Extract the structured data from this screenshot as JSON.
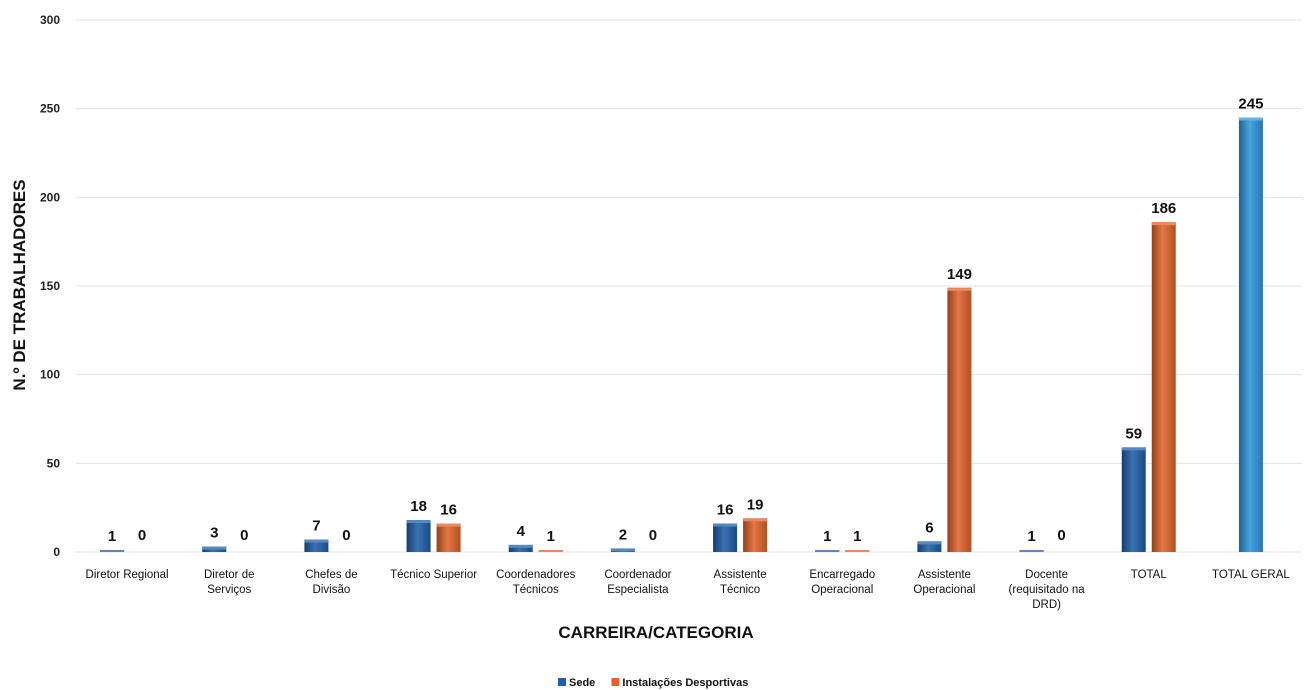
{
  "chart_data": {
    "type": "bar",
    "ylabel": "N.º DE TRABALHADORES",
    "xlabel": "CARREIRA/CATEGORIA",
    "ylim": [
      0,
      300
    ],
    "yticks": [
      "0",
      "50",
      "100",
      "150",
      "200",
      "250",
      "300"
    ],
    "grid": true,
    "legend_position": "bottom",
    "categories": [
      [
        "Diretor Regional"
      ],
      [
        "Diretor de",
        "Serviços"
      ],
      [
        "Chefes de",
        "Divisão"
      ],
      [
        "Técnico Superior"
      ],
      [
        "Coordenadores",
        "Técnicos"
      ],
      [
        "Coordenador",
        "Especialista"
      ],
      [
        "Assistente",
        "Técnico"
      ],
      [
        "Encarregado",
        "Operacional"
      ],
      [
        "Assistente",
        "Operacional"
      ],
      [
        "Docente",
        "(requisitado na",
        "DRD)"
      ],
      [
        "TOTAL"
      ],
      [
        "TOTAL GERAL"
      ]
    ],
    "series": [
      {
        "name": "Sede",
        "color": "#1f5fa8",
        "values": [
          1,
          3,
          7,
          18,
          4,
          2,
          16,
          1,
          6,
          1,
          59,
          null
        ]
      },
      {
        "name": "Instalações Desportivas",
        "color": "#e0642a",
        "values": [
          0,
          0,
          0,
          16,
          1,
          0,
          19,
          1,
          149,
          0,
          186,
          null
        ]
      }
    ],
    "total_geral": {
      "value": 245,
      "color": "#2f96dc"
    }
  }
}
